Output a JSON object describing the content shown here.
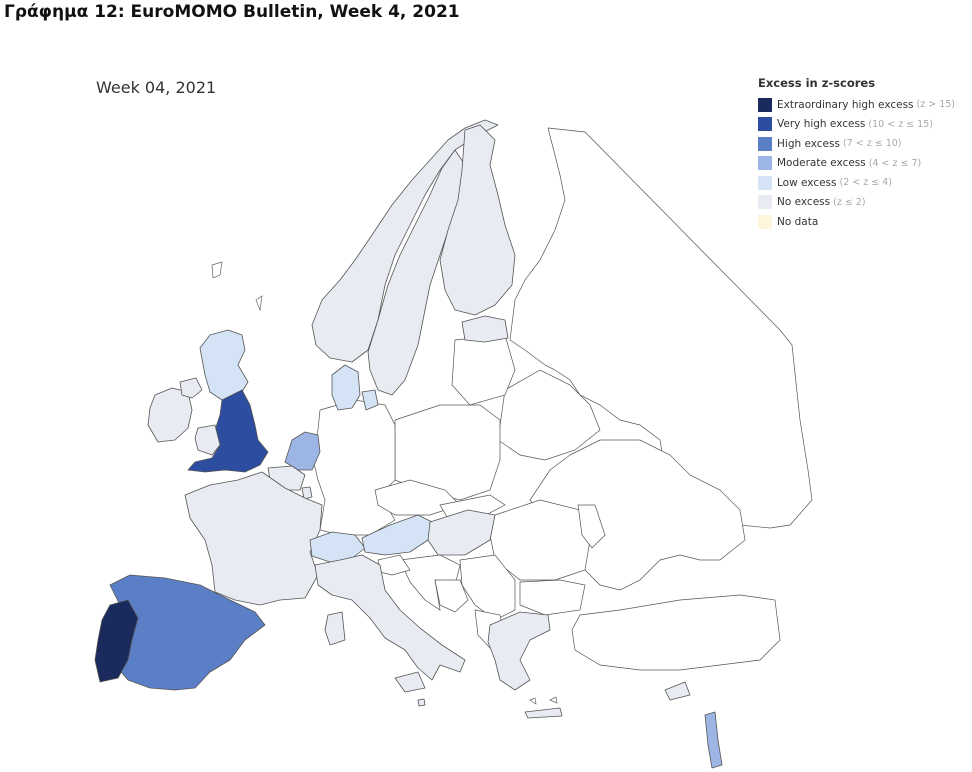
{
  "figure_title": "Γράφημα 12: EuroMOMO Bulletin, Week 4, 2021",
  "map_title": "Week 04, 2021",
  "legend": {
    "title": "Excess in z-scores",
    "items": [
      {
        "label": "Extraordinary high excess",
        "range": "(z > 15)",
        "color": "#1b2a5c"
      },
      {
        "label": "Very high excess",
        "range": "(10 < z ≤ 15)",
        "color": "#2c4da0"
      },
      {
        "label": "High excess",
        "range": "(7 < z ≤ 10)",
        "color": "#5b7fc7"
      },
      {
        "label": "Moderate excess",
        "range": "(4 < z ≤ 7)",
        "color": "#9cb5e4"
      },
      {
        "label": "Low excess",
        "range": "(2 < z ≤ 4)",
        "color": "#d4e4f6"
      },
      {
        "label": "No excess",
        "range": "(z ≤ 2)",
        "color": "#e8ebf1"
      },
      {
        "label": "No data",
        "range": "",
        "color": "#fdf6dc"
      }
    ]
  },
  "regions": [
    {
      "id": "portugal",
      "level": "Extraordinary high excess"
    },
    {
      "id": "england",
      "level": "Very high excess"
    },
    {
      "id": "spain",
      "level": "High excess"
    },
    {
      "id": "netherlands",
      "level": "Moderate excess"
    },
    {
      "id": "israel",
      "level": "Moderate excess"
    },
    {
      "id": "scotland",
      "level": "Low excess"
    },
    {
      "id": "denmark",
      "level": "Low excess"
    },
    {
      "id": "switzerland",
      "level": "Low excess"
    },
    {
      "id": "austria",
      "level": "Low excess"
    },
    {
      "id": "norway",
      "level": "No excess"
    },
    {
      "id": "sweden",
      "level": "No excess"
    },
    {
      "id": "finland",
      "level": "No excess"
    },
    {
      "id": "estonia",
      "level": "No excess"
    },
    {
      "id": "ireland",
      "level": "No excess"
    },
    {
      "id": "northern-ireland",
      "level": "No excess"
    },
    {
      "id": "wales",
      "level": "No excess"
    },
    {
      "id": "france",
      "level": "No excess"
    },
    {
      "id": "belgium",
      "level": "No excess"
    },
    {
      "id": "luxembourg",
      "level": "No excess"
    },
    {
      "id": "italy",
      "level": "No excess"
    },
    {
      "id": "hungary",
      "level": "No excess"
    },
    {
      "id": "greece",
      "level": "No excess"
    },
    {
      "id": "cyprus",
      "level": "No excess"
    },
    {
      "id": "malta",
      "level": "No excess"
    }
  ]
}
